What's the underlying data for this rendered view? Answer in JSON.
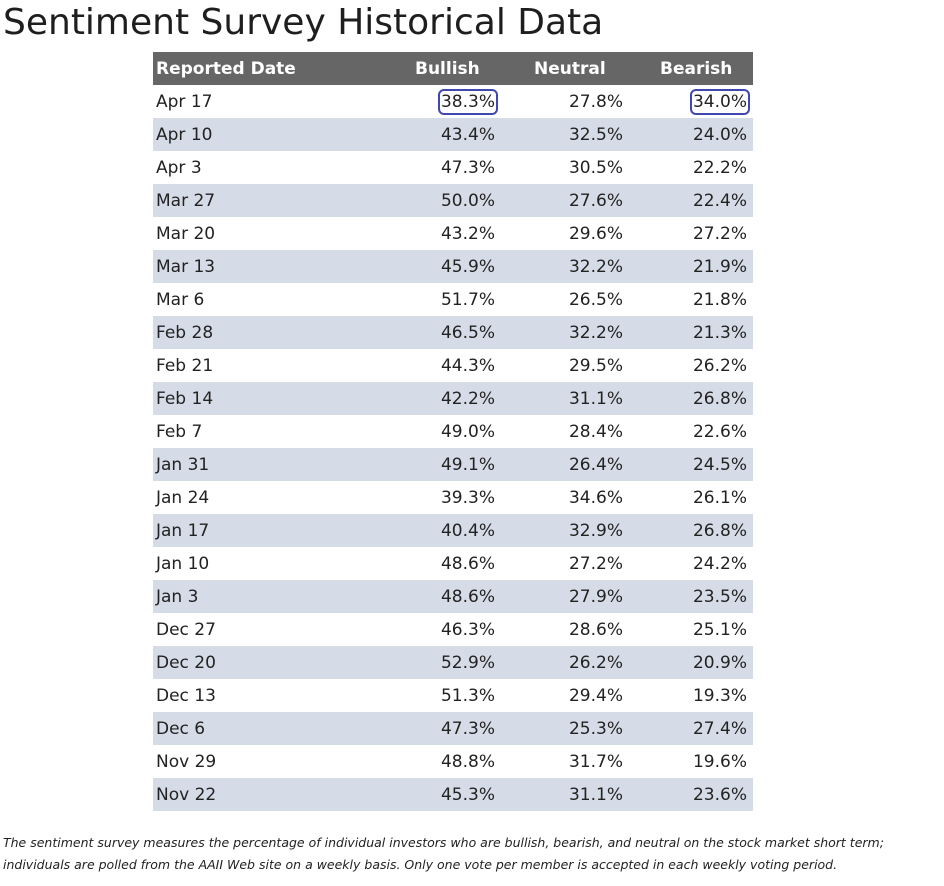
{
  "page": {
    "title": "Sentiment Survey Historical Data"
  },
  "table": {
    "headers": {
      "date": "Reported Date",
      "bullish": "Bullish",
      "neutral": "Neutral",
      "bearish": "Bearish"
    },
    "rows": [
      {
        "date": "Apr 17",
        "bullish": "38.3%",
        "neutral": "27.8%",
        "bearish": "34.0%"
      },
      {
        "date": "Apr 10",
        "bullish": "43.4%",
        "neutral": "32.5%",
        "bearish": "24.0%"
      },
      {
        "date": "Apr 3",
        "bullish": "47.3%",
        "neutral": "30.5%",
        "bearish": "22.2%"
      },
      {
        "date": "Mar 27",
        "bullish": "50.0%",
        "neutral": "27.6%",
        "bearish": "22.4%"
      },
      {
        "date": "Mar 20",
        "bullish": "43.2%",
        "neutral": "29.6%",
        "bearish": "27.2%"
      },
      {
        "date": "Mar 13",
        "bullish": "45.9%",
        "neutral": "32.2%",
        "bearish": "21.9%"
      },
      {
        "date": "Mar 6",
        "bullish": "51.7%",
        "neutral": "26.5%",
        "bearish": "21.8%"
      },
      {
        "date": "Feb 28",
        "bullish": "46.5%",
        "neutral": "32.2%",
        "bearish": "21.3%"
      },
      {
        "date": "Feb 21",
        "bullish": "44.3%",
        "neutral": "29.5%",
        "bearish": "26.2%"
      },
      {
        "date": "Feb 14",
        "bullish": "42.2%",
        "neutral": "31.1%",
        "bearish": "26.8%"
      },
      {
        "date": "Feb 7",
        "bullish": "49.0%",
        "neutral": "28.4%",
        "bearish": "22.6%"
      },
      {
        "date": "Jan 31",
        "bullish": "49.1%",
        "neutral": "26.4%",
        "bearish": "24.5%"
      },
      {
        "date": "Jan 24",
        "bullish": "39.3%",
        "neutral": "34.6%",
        "bearish": "26.1%"
      },
      {
        "date": "Jan 17",
        "bullish": "40.4%",
        "neutral": "32.9%",
        "bearish": "26.8%"
      },
      {
        "date": "Jan 10",
        "bullish": "48.6%",
        "neutral": "27.2%",
        "bearish": "24.2%"
      },
      {
        "date": "Jan 3",
        "bullish": "48.6%",
        "neutral": "27.9%",
        "bearish": "23.5%"
      },
      {
        "date": "Dec 27",
        "bullish": "46.3%",
        "neutral": "28.6%",
        "bearish": "25.1%"
      },
      {
        "date": "Dec 20",
        "bullish": "52.9%",
        "neutral": "26.2%",
        "bearish": "20.9%"
      },
      {
        "date": "Dec 13",
        "bullish": "51.3%",
        "neutral": "29.4%",
        "bearish": "19.3%"
      },
      {
        "date": "Dec 6",
        "bullish": "47.3%",
        "neutral": "25.3%",
        "bearish": "27.4%"
      },
      {
        "date": "Nov 29",
        "bullish": "48.8%",
        "neutral": "31.7%",
        "bearish": "19.6%"
      },
      {
        "date": "Nov 22",
        "bullish": "45.3%",
        "neutral": "31.1%",
        "bearish": "23.6%"
      }
    ]
  },
  "footnote": {
    "line1": "The sentiment survey measures the percentage of individual investors who are bullish, bearish, and neutral on the stock market short term;",
    "line2": "individuals are polled from the AAII Web site on a weekly basis. Only one vote per member is accepted in each weekly voting period."
  },
  "colors": {
    "header_background": "#666666",
    "stripe_background": "#d6dce7",
    "highlight_outline": "#4048b0"
  }
}
